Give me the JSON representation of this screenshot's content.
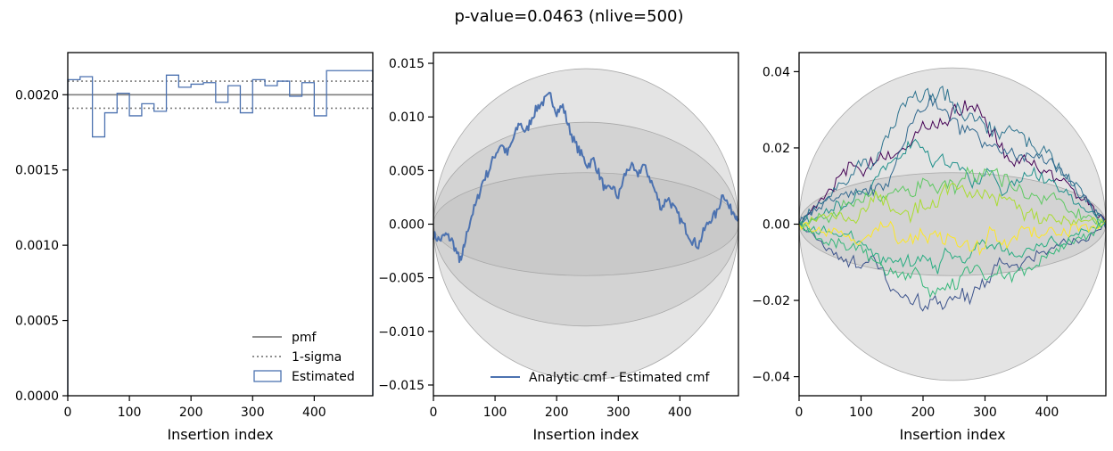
{
  "figure": {
    "suptitle": "p-value=0.0463 (nlive=500)"
  },
  "colors": {
    "estimated": "#4c72b0",
    "pmf": "#7f7f7f",
    "band": "#b8b8b8"
  },
  "chart_data": [
    {
      "type": "bar",
      "title": "",
      "xlabel": "Insertion index",
      "ylabel": "",
      "xlim": [
        0,
        495
      ],
      "ylim": [
        0,
        0.00228
      ],
      "xticks": [
        "0",
        "100",
        "200",
        "300",
        "400"
      ],
      "yticks": [
        "0.0000",
        "0.0005",
        "0.0010",
        "0.0015",
        "0.0020"
      ],
      "pmf": 0.002,
      "sigma": [
        0.00191,
        0.00209
      ],
      "bin_width": 20,
      "bins": [
        0,
        20,
        40,
        60,
        80,
        100,
        120,
        140,
        160,
        180,
        200,
        220,
        240,
        260,
        280,
        300,
        320,
        340,
        360,
        380,
        400,
        420,
        440,
        460,
        480
      ],
      "estimated": [
        0.0021,
        0.00212,
        0.00172,
        0.00188,
        0.00201,
        0.00186,
        0.00194,
        0.00189,
        0.00213,
        0.00205,
        0.00207,
        0.00208,
        0.00195,
        0.00206,
        0.00188,
        0.0021,
        0.00206,
        0.00209,
        0.00199,
        0.00208,
        0.00186,
        0.00216,
        0.00216,
        0.00216,
        0.00216
      ],
      "legend": [
        "pmf",
        "1-sigma",
        "Estimated"
      ],
      "legend_position": "lower right"
    },
    {
      "type": "line",
      "title": "",
      "xlabel": "Insertion index",
      "ylabel": "",
      "xlim": [
        0,
        495
      ],
      "ylim": [
        -0.016,
        0.016
      ],
      "xticks": [
        "0",
        "100",
        "200",
        "300",
        "400"
      ],
      "yticks": [
        "−0.015",
        "−0.010",
        "−0.005",
        "0.000",
        "0.005",
        "0.010",
        "0.015"
      ],
      "bands": [
        0.0145,
        0.0095,
        0.0048
      ],
      "series": [
        {
          "name": "Analytic cmf - Estimated cmf",
          "x": [
            0,
            10,
            20,
            30,
            40,
            45,
            50,
            60,
            70,
            80,
            90,
            100,
            110,
            120,
            130,
            140,
            150,
            160,
            170,
            180,
            190,
            200,
            210,
            220,
            230,
            240,
            250,
            260,
            270,
            280,
            290,
            300,
            310,
            320,
            330,
            340,
            350,
            360,
            370,
            380,
            390,
            400,
            410,
            420,
            430,
            440,
            450,
            460,
            470,
            480,
            490,
            495
          ],
          "y": [
            -0.001,
            -0.0015,
            -0.001,
            -0.0015,
            -0.003,
            -0.0035,
            -0.002,
            0.0005,
            0.002,
            0.004,
            0.005,
            0.0065,
            0.0075,
            0.0065,
            0.008,
            0.0095,
            0.0085,
            0.01,
            0.011,
            0.0115,
            0.012,
            0.0105,
            0.011,
            0.009,
            0.0075,
            0.0065,
            0.0055,
            0.006,
            0.0045,
            0.003,
            0.0035,
            0.0025,
            0.0045,
            0.0055,
            0.0045,
            0.0055,
            0.0045,
            0.003,
            0.0015,
            0.0025,
            0.0015,
            0.0005,
            -0.0005,
            -0.0015,
            -0.002,
            -0.0005,
            0.0005,
            0.001,
            0.003,
            0.0015,
            0.001,
            0.0005
          ]
        }
      ],
      "legend": [
        "Analytic cmf - Estimated cmf"
      ],
      "legend_position": "lower right"
    },
    {
      "type": "line",
      "title": "",
      "xlabel": "Insertion index",
      "ylabel": "",
      "xlim": [
        0,
        495
      ],
      "ylim": [
        -0.045,
        0.045
      ],
      "xticks": [
        "0",
        "100",
        "200",
        "300",
        "400"
      ],
      "yticks": [
        "−0.04",
        "−0.02",
        "0.00",
        "0.02",
        "0.04"
      ],
      "bands": [
        0.041,
        0.0135
      ],
      "series_colors": [
        "#440154",
        "#3b528b",
        "#2c728e",
        "#21918c",
        "#27ad81",
        "#5ec962",
        "#aadc32",
        "#fde725",
        "#31688e",
        "#35b779"
      ],
      "series_amplitudes": [
        0.03,
        -0.022,
        0.034,
        0.02,
        -0.012,
        0.012,
        0.009,
        -0.006,
        0.028,
        -0.016
      ]
    }
  ]
}
